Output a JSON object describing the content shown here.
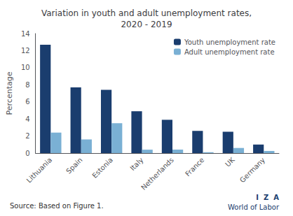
{
  "chart_data": {
    "type": "bar",
    "title": "Variation in youth and adult unemployment rates,\n2020 - 2019",
    "categories": [
      "Lithuania",
      "Spain",
      "Estonia",
      "Italy",
      "Netherlands",
      "France",
      "UK",
      "Germany"
    ],
    "series": [
      {
        "name": "Youth unemployment rate",
        "color": "#1a3d6e",
        "values": [
          12.7,
          7.7,
          7.4,
          4.9,
          3.9,
          2.6,
          2.5,
          1.0
        ]
      },
      {
        "name": "Adult unemployment rate",
        "color": "#7ab0d4",
        "values": [
          2.4,
          1.6,
          3.5,
          0.4,
          0.4,
          0.1,
          0.6,
          0.25
        ]
      }
    ],
    "ylabel": "Percentage",
    "ylim": [
      0,
      14
    ],
    "yticks": [
      0,
      2,
      4,
      6,
      8,
      10,
      12,
      14
    ],
    "grid": false,
    "legend": "upper right",
    "annotations": [
      "Source: Based on Figure 1.",
      "I  Z  A",
      "World of Labor"
    ]
  }
}
